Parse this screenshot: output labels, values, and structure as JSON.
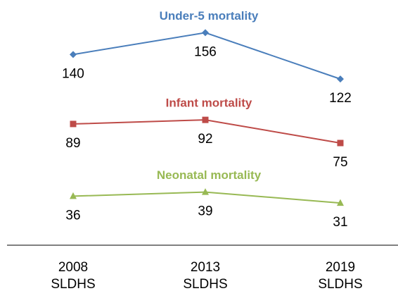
{
  "chart_data": {
    "type": "line",
    "categories": [
      "2008 SLDHS",
      "2013 SLDHS",
      "2019 SLDHS"
    ],
    "ylim": [
      0,
      180
    ],
    "series": [
      {
        "name": "Under-5 mortality",
        "color": "#4a7ebb",
        "marker": "diamond",
        "values": [
          140,
          156,
          122
        ]
      },
      {
        "name": "Infant mortality",
        "color": "#be4b48",
        "marker": "square",
        "values": [
          89,
          92,
          75
        ]
      },
      {
        "name": "Neonatal mortality",
        "color": "#98b954",
        "marker": "triangle",
        "values": [
          36,
          39,
          31
        ]
      }
    ]
  }
}
